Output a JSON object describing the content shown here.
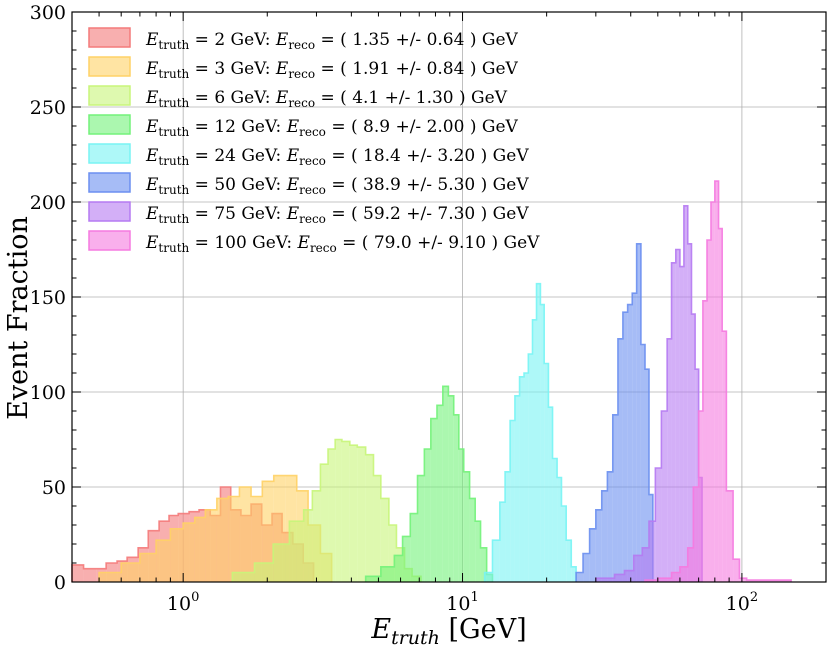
{
  "chart_data": {
    "type": "histogram",
    "xscale": "log",
    "xlim": [
      0.4,
      200
    ],
    "ylim": [
      0,
      300
    ],
    "xlabel": "E_truth [GeV]",
    "ylabel": "Event Fraction",
    "grid": true,
    "legend_position": "top-left",
    "xticks": [
      {
        "value": 1,
        "base": "10",
        "exp": "0"
      },
      {
        "value": 10,
        "base": "10",
        "exp": "1"
      },
      {
        "value": 100,
        "base": "10",
        "exp": "2"
      }
    ],
    "yticks": [
      0,
      50,
      100,
      150,
      200,
      250,
      300
    ],
    "series": [
      {
        "name": "E_truth = 2 GeV: E_reco = ( 1.35 +/- 0.64 ) GeV",
        "etruth": "2",
        "ereco": "( 1.35 +/- 0.64 ) GeV",
        "color": "#f47a7a",
        "alpha": 0.6,
        "x_edges": [
          0.4,
          0.44,
          0.49,
          0.53,
          0.58,
          0.63,
          0.69,
          0.75,
          0.82,
          0.89,
          0.96,
          1.05,
          1.14,
          1.25,
          1.36,
          1.48,
          1.61,
          1.75,
          1.91,
          2.08,
          2.26,
          2.47,
          2.69,
          2.93
        ],
        "values": [
          9,
          7,
          7,
          10,
          11,
          13,
          18,
          27,
          32,
          35,
          36,
          37,
          38,
          35,
          50,
          38,
          35,
          41,
          30,
          36,
          26,
          20,
          10
        ]
      },
      {
        "name": "E_truth = 3 GeV: E_reco = ( 1.91 +/- 0.84 ) GeV",
        "etruth": "3",
        "ereco": "( 1.91 +/- 0.84 ) GeV",
        "color": "#ffd266",
        "alpha": 0.6,
        "x_edges": [
          0.5,
          0.6,
          0.7,
          0.8,
          0.9,
          1.0,
          1.1,
          1.2,
          1.32,
          1.45,
          1.59,
          1.75,
          1.92,
          2.11,
          2.32,
          2.55,
          2.8,
          3.1,
          3.4
        ],
        "values": [
          5,
          10,
          15,
          22,
          28,
          31,
          34,
          38,
          44,
          45,
          50,
          45,
          53,
          56,
          56,
          48,
          30,
          15
        ]
      },
      {
        "name": "E_truth = 6 GeV: E_reco = ( 4.1 +/- 1.30 ) GeV",
        "etruth": "6",
        "ereco": "( 4.1 +/- 1.30 ) GeV",
        "color": "#c8f57a",
        "alpha": 0.6,
        "x_edges": [
          1.5,
          1.8,
          2.1,
          2.4,
          2.7,
          2.9,
          3.1,
          3.3,
          3.5,
          3.7,
          3.95,
          4.2,
          4.5,
          4.8,
          5.1,
          5.45,
          5.8,
          6.2,
          6.6,
          7.1
        ],
        "values": [
          5,
          10,
          20,
          32,
          38,
          48,
          62,
          70,
          75,
          74,
          72,
          71,
          67,
          56,
          44,
          30,
          18,
          7,
          3
        ]
      },
      {
        "name": "E_truth = 12 GeV: E_reco = ( 8.9 +/- 2.00 ) GeV",
        "etruth": "12",
        "ereco": "( 8.9 +/- 2.00 ) GeV",
        "color": "#73f27a",
        "alpha": 0.6,
        "x_edges": [
          4.5,
          5.1,
          5.7,
          6.1,
          6.5,
          6.9,
          7.3,
          7.7,
          8.1,
          8.5,
          8.9,
          9.3,
          9.7,
          10.1,
          10.6,
          11.1,
          11.6,
          12.2,
          12.8
        ],
        "values": [
          3,
          8,
          14,
          24,
          36,
          56,
          70,
          86,
          93,
          103,
          98,
          88,
          70,
          58,
          44,
          32,
          18,
          4
        ]
      },
      {
        "name": "E_truth = 24 GeV: E_reco = ( 18.4 +/- 3.20 ) GeV",
        "etruth": "24",
        "ereco": "( 18.4 +/- 3.20 ) GeV",
        "color": "#78f4f4",
        "alpha": 0.6,
        "x_edges": [
          12.0,
          12.8,
          13.6,
          14.2,
          14.8,
          15.4,
          16.0,
          16.6,
          17.2,
          17.8,
          18.4,
          19.0,
          19.6,
          20.3,
          21.0,
          21.8,
          22.6,
          23.5,
          24.5,
          25.5
        ],
        "values": [
          5,
          22,
          42,
          58,
          85,
          98,
          108,
          110,
          120,
          138,
          157,
          146,
          115,
          92,
          65,
          55,
          40,
          22,
          8
        ]
      },
      {
        "name": "E_truth = 50 GeV: E_reco = ( 38.9 +/- 5.30 ) GeV",
        "etruth": "50",
        "ereco": "( 38.9 +/- 5.30 ) GeV",
        "color": "#6b8ff0",
        "alpha": 0.6,
        "x_edges": [
          25.5,
          27.0,
          28.5,
          30.0,
          31.5,
          33.0,
          34.5,
          36.0,
          37.5,
          39.0,
          40.5,
          42.0,
          43.5,
          45.0,
          46.5,
          48.0
        ],
        "values": [
          5,
          15,
          28,
          38,
          48,
          58,
          88,
          128,
          142,
          146,
          152,
          178,
          125,
          112,
          46
        ]
      },
      {
        "name": "E_truth = 75 GeV: E_reco = ( 59.2 +/- 7.30 ) GeV",
        "etruth": "75",
        "ereco": "( 59.2 +/- 7.30 ) GeV",
        "color": "#b57af2",
        "alpha": 0.6,
        "x_edges": [
          30.0,
          35.0,
          38.0,
          41.0,
          44.0,
          46.5,
          49.0,
          51.5,
          54.0,
          56.0,
          58.0,
          60.0,
          62.0,
          64.0,
          66.0,
          68.0,
          70.0,
          72.0
        ],
        "values": [
          2,
          4,
          6,
          14,
          18,
          32,
          60,
          90,
          128,
          168,
          175,
          166,
          198,
          178,
          141,
          112,
          55
        ]
      },
      {
        "name": "E_truth = 100 GeV: E_reco = ( 79.0 +/- 9.10 ) GeV",
        "etruth": "100",
        "ereco": "( 79.0 +/- 9.10 ) GeV",
        "color": "#f57ae0",
        "alpha": 0.6,
        "x_edges": [
          45.0,
          50.0,
          56.0,
          60.0,
          64.0,
          67.0,
          70.0,
          72.5,
          75.0,
          77.5,
          80.0,
          82.5,
          85.0,
          88.0,
          93.0,
          98.0,
          104.0,
          115.0,
          150.0
        ],
        "values": [
          1,
          2,
          5,
          8,
          18,
          50,
          90,
          148,
          180,
          200,
          211,
          186,
          132,
          48,
          12,
          2,
          1,
          1
        ]
      }
    ]
  }
}
